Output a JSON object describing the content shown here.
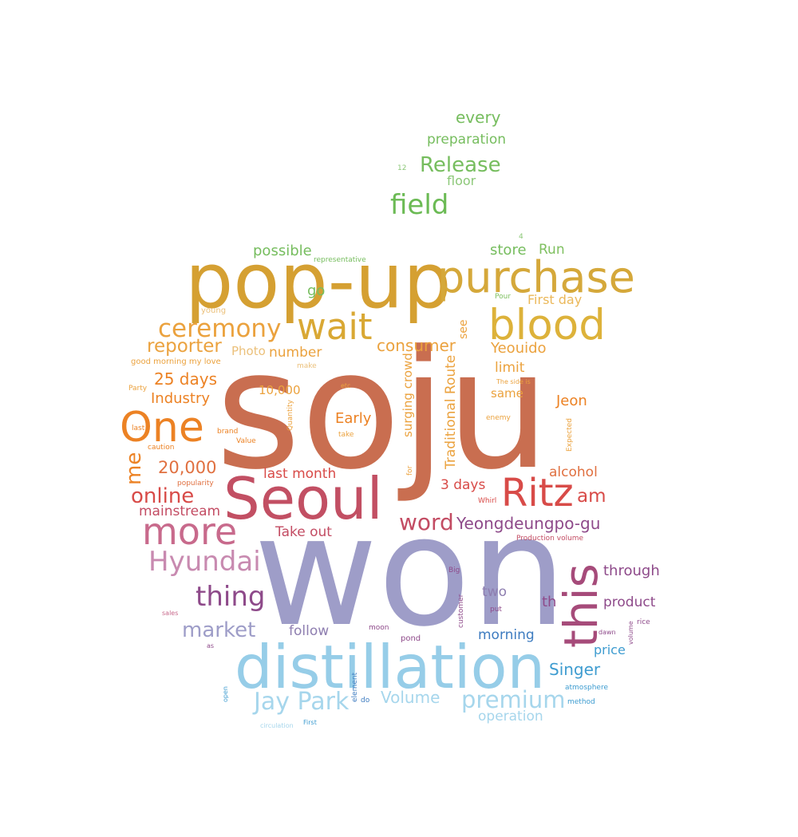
{
  "word_cloud": {
    "words": [
      {
        "text": "soju",
        "color": "#C96E50"
      },
      {
        "text": "won",
        "color": "#9E9DC8"
      },
      {
        "text": "pop-up",
        "color": "#D5A032"
      },
      {
        "text": "distillation",
        "color": "#96CDE8"
      },
      {
        "text": "Seoul",
        "color": "#C24F63"
      },
      {
        "text": "purchase",
        "color": "#D5A83A"
      },
      {
        "text": "blood",
        "color": "#DDB23A"
      },
      {
        "text": "this",
        "color": "#A64B7A"
      },
      {
        "text": "more",
        "color": "#C86A8C"
      },
      {
        "text": "One",
        "color": "#EC8224"
      },
      {
        "text": "Ritz",
        "color": "#D84B48"
      },
      {
        "text": "wait",
        "color": "#D9A834"
      },
      {
        "text": "ceremony",
        "color": "#EBA23E"
      },
      {
        "text": "Hyundai",
        "color": "#C88AB0"
      },
      {
        "text": "field",
        "color": "#6BBA54"
      },
      {
        "text": "thing",
        "color": "#8E4A8A"
      },
      {
        "text": "Jay Park",
        "color": "#A6D6EC"
      },
      {
        "text": "premium",
        "color": "#A6D6EC"
      },
      {
        "text": "Release",
        "color": "#76BD5E"
      },
      {
        "text": "word",
        "color": "#C34C63"
      },
      {
        "text": "market",
        "color": "#9E9DC8"
      },
      {
        "text": "online",
        "color": "#D84B48"
      },
      {
        "text": "reporter",
        "color": "#EBA23E"
      },
      {
        "text": "Yeongdeungpo-gu",
        "color": "#8E4A8A"
      },
      {
        "text": "Volume",
        "color": "#A6D6EC"
      },
      {
        "text": "Singer",
        "color": "#3E9CD0"
      },
      {
        "text": "me",
        "color": "#EC8224"
      },
      {
        "text": "consumer",
        "color": "#EBA23E"
      },
      {
        "text": "every",
        "color": "#76BD5E"
      },
      {
        "text": "25 days",
        "color": "#EC8224"
      },
      {
        "text": "20,000",
        "color": "#E07040"
      },
      {
        "text": "mainstream",
        "color": "#C34C63"
      },
      {
        "text": "am",
        "color": "#D84B48"
      },
      {
        "text": "Take out",
        "color": "#C34C63"
      },
      {
        "text": "last month",
        "color": "#D84B48"
      },
      {
        "text": "3 days",
        "color": "#D84B48"
      },
      {
        "text": "Industry",
        "color": "#EC8224"
      },
      {
        "text": "Early",
        "color": "#EC8224"
      },
      {
        "text": "Yeouido",
        "color": "#EBA23E"
      },
      {
        "text": "preparation",
        "color": "#76BD5E"
      },
      {
        "text": "possible",
        "color": "#76BD5E"
      },
      {
        "text": "store",
        "color": "#76BD5E"
      },
      {
        "text": "through",
        "color": "#8E4A8A"
      },
      {
        "text": "product",
        "color": "#8E4A8A"
      },
      {
        "text": "Jeon",
        "color": "#EC8224"
      },
      {
        "text": "alcohol",
        "color": "#E07040"
      },
      {
        "text": "morning",
        "color": "#3E7CC0"
      },
      {
        "text": "number",
        "color": "#EBA23E"
      },
      {
        "text": "limit",
        "color": "#EBA23E"
      },
      {
        "text": "two",
        "color": "#8E7EB0"
      },
      {
        "text": "th",
        "color": "#8E4A8A"
      },
      {
        "text": "price",
        "color": "#3E9CD0"
      },
      {
        "text": "operation",
        "color": "#A6D6EC"
      },
      {
        "text": "follow",
        "color": "#8E7EB0"
      },
      {
        "text": "Traditional Route",
        "color": "#EBA23E"
      },
      {
        "text": "surging crowd",
        "color": "#EBA23E"
      },
      {
        "text": "Run",
        "color": "#7FC060"
      },
      {
        "text": "First day",
        "color": "#EBB85A"
      },
      {
        "text": "floor",
        "color": "#8CC878"
      },
      {
        "text": "Photo",
        "color": "#EBC07A"
      },
      {
        "text": "go",
        "color": "#76BD5E"
      },
      {
        "text": "see",
        "color": "#EBA23E"
      },
      {
        "text": "same",
        "color": "#EBA23E"
      },
      {
        "text": "10,000",
        "color": "#EBA23E"
      },
      {
        "text": "representative",
        "color": "#76BD5E"
      },
      {
        "text": "young",
        "color": "#EBC07A"
      },
      {
        "text": "good morning my love",
        "color": "#EBA23E"
      },
      {
        "text": "make",
        "color": "#EBC07A"
      },
      {
        "text": "Party",
        "color": "#EBA23E"
      },
      {
        "text": "etc",
        "color": "#EBA23E"
      },
      {
        "text": "Quantity",
        "color": "#EBA23E"
      },
      {
        "text": "The side is",
        "color": "#EBA23E"
      },
      {
        "text": "Pour",
        "color": "#7FC060"
      },
      {
        "text": "4",
        "color": "#8CC878"
      },
      {
        "text": "12",
        "color": "#8CC878"
      },
      {
        "text": "last",
        "color": "#EC8224"
      },
      {
        "text": "brand",
        "color": "#EC8224"
      },
      {
        "text": "Value",
        "color": "#EC8224"
      },
      {
        "text": "take",
        "color": "#EBA23E"
      },
      {
        "text": "caution",
        "color": "#EC8224"
      },
      {
        "text": "enemy",
        "color": "#EBA23E"
      },
      {
        "text": "Expected",
        "color": "#EBA23E"
      },
      {
        "text": "popularity",
        "color": "#E07040"
      },
      {
        "text": "for",
        "color": "#EBA23E"
      },
      {
        "text": "Whirl",
        "color": "#D84B48"
      },
      {
        "text": "Production volume",
        "color": "#C34C63"
      },
      {
        "text": "Big",
        "color": "#8E4A8A"
      },
      {
        "text": "sales",
        "color": "#C86A8C"
      },
      {
        "text": "as",
        "color": "#8E4A8A"
      },
      {
        "text": "customer",
        "color": "#8E4A8A"
      },
      {
        "text": "put",
        "color": "#8E4A8A"
      },
      {
        "text": "moon",
        "color": "#8E4A8A"
      },
      {
        "text": "pond",
        "color": "#8E4A8A"
      },
      {
        "text": "dawn",
        "color": "#8E4A8A"
      },
      {
        "text": "volume",
        "color": "#8E4A8A"
      },
      {
        "text": "rice",
        "color": "#8E4A8A"
      },
      {
        "text": "element",
        "color": "#3E7CC0"
      },
      {
        "text": "do",
        "color": "#3E7CC0"
      },
      {
        "text": "atmosphere",
        "color": "#3E9CD0"
      },
      {
        "text": "method",
        "color": "#3E9CD0"
      },
      {
        "text": "open",
        "color": "#3E9CD0"
      },
      {
        "text": "circulation",
        "color": "#A6D6EC"
      },
      {
        "text": "First",
        "color": "#3E9CD0"
      }
    ]
  }
}
